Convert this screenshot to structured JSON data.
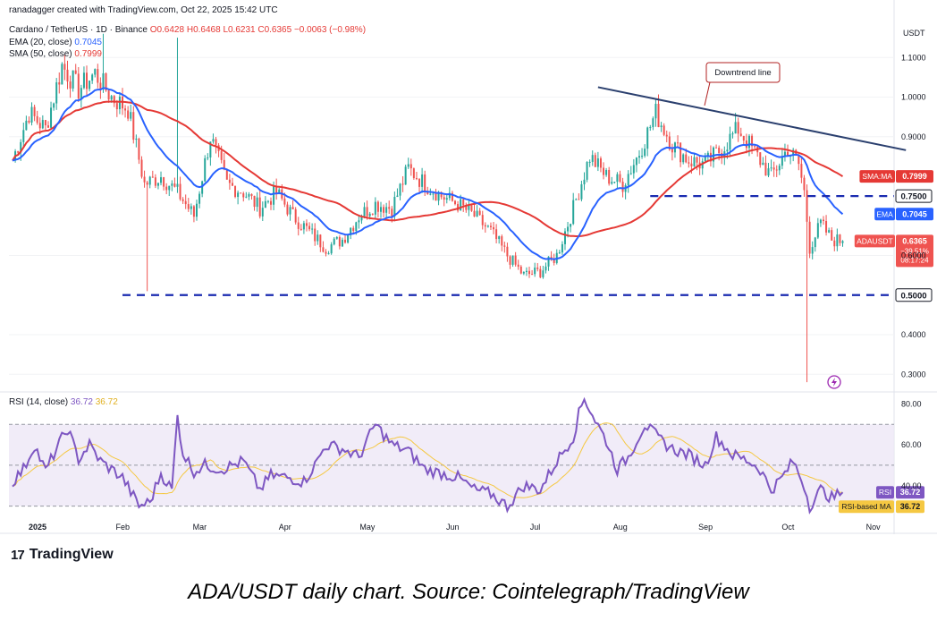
{
  "header": {
    "credit": "ranadagger created with TradingView.com, Oct 22, 2025 15:42 UTC",
    "symbol_line": "Cardano / TetherUS · 1D · Binance",
    "ohlc": {
      "o": "O0.6428",
      "h": "H0.6468",
      "l": "L0.6231",
      "c": "C0.6365",
      "chg": "−0.0063 (−0.98%)"
    },
    "ema_legend": "EMA (20, close)",
    "ema_value": "0.7045",
    "sma_legend": "SMA (50, close)",
    "sma_value": "0.7999",
    "rsi_legend": "RSI (14, close)",
    "rsi_value": "36.72",
    "rsi_ma_value": "36.72"
  },
  "colors": {
    "up": "#26a69a",
    "down": "#ef5350",
    "ema": "#2962ff",
    "sma": "#e53935",
    "rsi": "#7e57c2",
    "rsi_ma": "#f5c842",
    "trend": "#2a3f6e",
    "level": "#1a2bb0"
  },
  "chart_data": [
    {
      "type": "candlestick",
      "title": "Cardano / TetherUS · 1D · Binance",
      "currency": "USDT",
      "y_ticks": [
        "1.1000",
        "1.0000",
        "0.9000",
        "0.6000",
        "0.4000",
        "0.3000"
      ],
      "x_ticks": [
        "2025",
        "Feb",
        "Mar",
        "Apr",
        "May",
        "Jun",
        "Jul",
        "Aug",
        "Sep",
        "Oct",
        "Nov"
      ],
      "ylim": [
        0.26,
        1.2
      ],
      "x_range_days": [
        0,
        322
      ],
      "annotations": {
        "downtrend_label": "Downtrend line",
        "downtrend_line": [
          {
            "day": 213,
            "price": 1.025
          },
          {
            "day": 325,
            "price": 0.866
          }
        ],
        "levels": [
          {
            "label": "0.7500",
            "price": 0.75,
            "from_day": 232
          },
          {
            "label": "0.5000",
            "price": 0.5,
            "from_day": 40
          }
        ],
        "price_tags": [
          {
            "name": "SMA:MA",
            "value": "0.7999",
            "price": 0.7999
          },
          {
            "name": "EMA",
            "value": "0.7045",
            "price": 0.7045
          },
          {
            "name": "ADAUSDT",
            "value": "0.6365",
            "sub": [
              "−39.51%",
              "08:17:24"
            ],
            "price": 0.6365
          }
        ]
      },
      "close_anchors": [
        [
          0,
          0.84
        ],
        [
          6,
          0.96
        ],
        [
          12,
          0.92
        ],
        [
          18,
          1.08
        ],
        [
          24,
          1.02
        ],
        [
          30,
          1.06
        ],
        [
          36,
          1.0
        ],
        [
          42,
          0.97
        ],
        [
          48,
          0.78
        ],
        [
          54,
          0.8
        ],
        [
          60,
          0.76
        ],
        [
          66,
          0.7
        ],
        [
          72,
          0.9
        ],
        [
          78,
          0.78
        ],
        [
          84,
          0.76
        ],
        [
          90,
          0.72
        ],
        [
          96,
          0.76
        ],
        [
          102,
          0.7
        ],
        [
          108,
          0.66
        ],
        [
          114,
          0.62
        ],
        [
          120,
          0.64
        ],
        [
          126,
          0.7
        ],
        [
          132,
          0.73
        ],
        [
          138,
          0.72
        ],
        [
          144,
          0.82
        ],
        [
          150,
          0.78
        ],
        [
          156,
          0.75
        ],
        [
          162,
          0.73
        ],
        [
          168,
          0.7
        ],
        [
          174,
          0.66
        ],
        [
          180,
          0.6
        ],
        [
          186,
          0.55
        ],
        [
          192,
          0.56
        ],
        [
          198,
          0.6
        ],
        [
          204,
          0.72
        ],
        [
          210,
          0.85
        ],
        [
          216,
          0.8
        ],
        [
          222,
          0.78
        ],
        [
          228,
          0.86
        ],
        [
          234,
          0.96
        ],
        [
          240,
          0.88
        ],
        [
          246,
          0.84
        ],
        [
          252,
          0.83
        ],
        [
          258,
          0.87
        ],
        [
          264,
          0.92
        ],
        [
          270,
          0.86
        ],
        [
          276,
          0.8
        ],
        [
          282,
          0.87
        ],
        [
          286,
          0.83
        ],
        [
          288,
          0.76
        ],
        [
          290,
          0.62
        ],
        [
          294,
          0.68
        ],
        [
          298,
          0.64
        ],
        [
          302,
          0.6365
        ]
      ],
      "spikes": [
        {
          "day": 33,
          "high": 1.16
        },
        {
          "day": 60,
          "high": 1.15
        },
        {
          "day": 49,
          "low": 0.51
        },
        {
          "day": 289,
          "low": 0.28
        }
      ],
      "ema_last": 0.7045,
      "sma_last": 0.7999
    },
    {
      "type": "line",
      "title": "RSI (14, close)",
      "y_ticks": [
        "80.00",
        "60.00",
        "40.00"
      ],
      "ylim": [
        25,
        85
      ],
      "band": [
        30,
        70
      ],
      "rsi_last": 36.72,
      "rsi_ma_last": 36.72,
      "tags": [
        {
          "name": "RSI",
          "value": "36.72"
        },
        {
          "name": "RSI-based MA",
          "value": "36.72"
        }
      ],
      "rsi_anchors": [
        [
          0,
          42
        ],
        [
          4,
          48
        ],
        [
          8,
          60
        ],
        [
          12,
          47
        ],
        [
          16,
          58
        ],
        [
          20,
          68
        ],
        [
          24,
          53
        ],
        [
          28,
          60
        ],
        [
          32,
          52
        ],
        [
          36,
          48
        ],
        [
          40,
          44
        ],
        [
          46,
          30
        ],
        [
          50,
          32
        ],
        [
          54,
          46
        ],
        [
          58,
          38
        ],
        [
          60,
          74
        ],
        [
          62,
          56
        ],
        [
          66,
          47
        ],
        [
          70,
          50
        ],
        [
          76,
          48
        ],
        [
          84,
          52
        ],
        [
          90,
          38
        ],
        [
          94,
          45
        ],
        [
          100,
          44
        ],
        [
          106,
          42
        ],
        [
          110,
          50
        ],
        [
          114,
          60
        ],
        [
          120,
          58
        ],
        [
          126,
          54
        ],
        [
          132,
          70
        ],
        [
          138,
          60
        ],
        [
          144,
          57
        ],
        [
          150,
          48
        ],
        [
          156,
          46
        ],
        [
          162,
          44
        ],
        [
          168,
          38
        ],
        [
          174,
          36
        ],
        [
          180,
          30
        ],
        [
          186,
          40
        ],
        [
          192,
          38
        ],
        [
          198,
          52
        ],
        [
          204,
          64
        ],
        [
          206,
          75
        ],
        [
          208,
          83
        ],
        [
          212,
          72
        ],
        [
          216,
          62
        ],
        [
          220,
          48
        ],
        [
          224,
          54
        ],
        [
          230,
          70
        ],
        [
          236,
          62
        ],
        [
          240,
          58
        ],
        [
          246,
          55
        ],
        [
          252,
          50
        ],
        [
          256,
          64
        ],
        [
          262,
          55
        ],
        [
          268,
          52
        ],
        [
          272,
          48
        ],
        [
          276,
          38
        ],
        [
          280,
          44
        ],
        [
          284,
          52
        ],
        [
          288,
          40
        ],
        [
          290,
          30
        ],
        [
          294,
          38
        ],
        [
          298,
          34
        ],
        [
          302,
          36.72
        ]
      ]
    }
  ],
  "footer": {
    "brand": "TradingView",
    "brand_mark": "17",
    "caption": "ADA/USDT daily chart. Source: Cointelegraph/TradingView"
  }
}
